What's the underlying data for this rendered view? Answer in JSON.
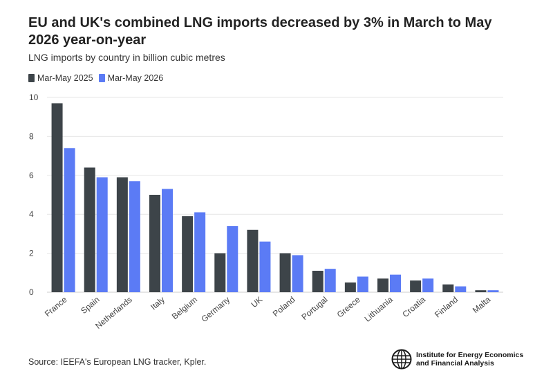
{
  "header": {
    "title": "EU and UK's combined LNG imports decreased by 3% in March to May 2026 year-on-year",
    "subtitle": "LNG imports by country in billion cubic metres"
  },
  "legend": [
    {
      "label": "Mar-May 2025",
      "color": "#3d4449"
    },
    {
      "label": "Mar-May 2026",
      "color": "#5b7bf5"
    }
  ],
  "chart_data": {
    "type": "bar",
    "categories": [
      "France",
      "Spain",
      "Netherlands",
      "Italy",
      "Belgium",
      "Germany",
      "UK",
      "Poland",
      "Portugal",
      "Greece",
      "Lithuania",
      "Croatia",
      "Finland",
      "Malta"
    ],
    "series": [
      {
        "name": "Mar-May 2025",
        "color": "#3d4449",
        "values": [
          9.7,
          6.4,
          5.9,
          5.0,
          3.9,
          2.0,
          3.2,
          2.0,
          1.1,
          0.5,
          0.7,
          0.6,
          0.4,
          0.1
        ]
      },
      {
        "name": "Mar-May 2026",
        "color": "#5b7bf5",
        "values": [
          7.4,
          5.9,
          5.7,
          5.3,
          4.1,
          3.4,
          2.6,
          1.9,
          1.2,
          0.8,
          0.9,
          0.7,
          0.3,
          0.1
        ]
      }
    ],
    "ylim": [
      0,
      10
    ],
    "yticks": [
      0,
      2,
      4,
      6,
      8,
      10
    ],
    "grid": true,
    "legend_position": "top-left"
  },
  "footer": {
    "source": "Source: IEEFA's European LNG tracker, Kpler.",
    "logo_line1": "Institute for Energy Economics",
    "logo_line2": "and Financial Analysis",
    "logo_icon": "globe-icon"
  }
}
